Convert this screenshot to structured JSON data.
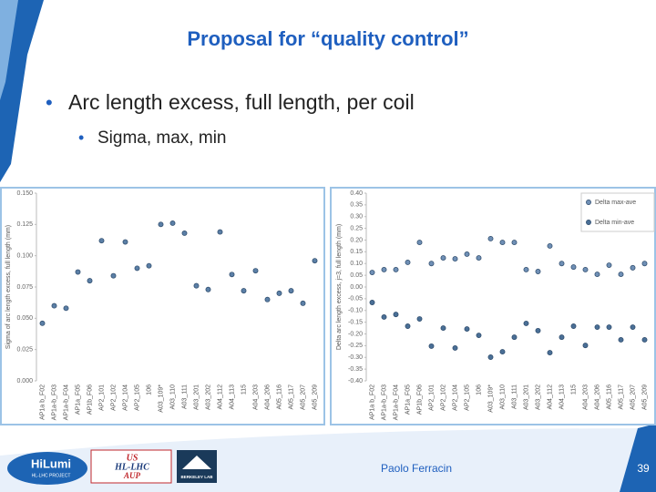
{
  "slide": {
    "title": "Proposal for “quality control”",
    "bullets": [
      "Arc length excess, full length, per coil"
    ],
    "sub_bullets": [
      "Sigma, max, min"
    ],
    "logos": [
      "HiLumi",
      "HL-LHC PROJECT",
      "US",
      "HL-LHC",
      "AUP",
      "BERKELEY LAB"
    ],
    "footer": "Paolo Ferracin",
    "page": "39"
  },
  "chart_data": [
    {
      "type": "scatter",
      "ylabel": "Sigma of arc length excess, full length (mm)",
      "categories": [
        "AP1a b_F02",
        "AP1a-b_F03",
        "AP1a-b_F04",
        "AP1a_F05",
        "AP1b_F06",
        "AP2_101",
        "AP2_102",
        "AP2_104",
        "AP2_105",
        "106",
        "A03_109*",
        "A03_110",
        "A03_111",
        "A03_201",
        "A03_202",
        "A04_112",
        "A04_113",
        "115",
        "A04_203",
        "A04_206",
        "A05_116",
        "A05_117",
        "A05_207",
        "A05_209"
      ],
      "series": [
        {
          "name": "Sigma",
          "color": "#5b7fa6",
          "values": [
            0.046,
            0.06,
            0.058,
            0.087,
            0.08,
            0.112,
            0.084,
            0.111,
            0.09,
            0.092,
            0.125,
            0.126,
            0.118,
            0.076,
            0.073,
            0.119,
            0.085,
            0.072,
            0.088,
            0.065,
            0.07,
            0.072,
            0.062,
            0.096
          ]
        }
      ],
      "ylim": [
        0,
        0.15
      ],
      "yticks": [
        {
          "value": 0,
          "label": "0.000"
        },
        {
          "value": 0.025,
          "label": "0.025"
        },
        {
          "value": 0.05,
          "label": "0.050"
        },
        {
          "value": 0.075,
          "label": "0.075"
        },
        {
          "value": 0.1,
          "label": "0.100"
        },
        {
          "value": 0.125,
          "label": "0.125"
        },
        {
          "value": 0.15,
          "label": "0.150"
        }
      ],
      "legend": false
    },
    {
      "type": "scatter",
      "ylabel": "Delta arc length excess, j=3, full length (mm)",
      "categories": [
        "AP1a b_F02",
        "AP1a-b_F03",
        "AP1a-b_F04",
        "AP1a_F05",
        "AP1b_F06",
        "AP2_101",
        "AP2_102",
        "AP2_104",
        "AP2_105",
        "106",
        "A03_109*",
        "A03_110",
        "A03_111",
        "A03_201",
        "A03_202",
        "A04_112",
        "A04_113",
        "115",
        "A04_203",
        "A04_206",
        "A05_116",
        "A05_117",
        "A05_207",
        "A05_209"
      ],
      "series": [
        {
          "name": "Delta max-ave",
          "color": "#6f8fb5",
          "values": [
            0.062,
            0.074,
            0.074,
            0.105,
            0.19,
            0.1,
            0.124,
            0.12,
            0.14,
            0.124,
            0.206,
            0.19,
            0.19,
            0.074,
            0.066,
            0.175,
            0.1,
            0.085,
            0.074,
            0.054,
            0.093,
            0.054,
            0.082,
            0.1
          ]
        },
        {
          "name": "Delta min-ave",
          "color": "#4a6f96",
          "values": [
            -0.066,
            -0.128,
            -0.117,
            -0.167,
            -0.136,
            -0.252,
            -0.175,
            -0.26,
            -0.179,
            -0.206,
            -0.299,
            -0.276,
            -0.214,
            -0.155,
            -0.186,
            -0.28,
            -0.214,
            -0.167,
            -0.249,
            -0.171,
            -0.171,
            -0.225,
            -0.171,
            -0.225
          ]
        }
      ],
      "ylim": [
        -0.4,
        0.4
      ],
      "yticks": [
        {
          "value": -0.4,
          "label": "-0.40"
        },
        {
          "value": -0.35,
          "label": "-0.35"
        },
        {
          "value": -0.3,
          "label": "-0.30"
        },
        {
          "value": -0.25,
          "label": "-0.25"
        },
        {
          "value": -0.2,
          "label": "-0.20"
        },
        {
          "value": -0.15,
          "label": "-0.15"
        },
        {
          "value": -0.1,
          "label": "-0.10"
        },
        {
          "value": -0.05,
          "label": "-0.05"
        },
        {
          "value": 0,
          "label": "0.00"
        },
        {
          "value": 0.05,
          "label": "0.05"
        },
        {
          "value": 0.1,
          "label": "0.10"
        },
        {
          "value": 0.15,
          "label": "0.15"
        },
        {
          "value": 0.2,
          "label": "0.20"
        },
        {
          "value": 0.25,
          "label": "0.25"
        },
        {
          "value": 0.3,
          "label": "0.30"
        },
        {
          "value": 0.35,
          "label": "0.35"
        },
        {
          "value": 0.4,
          "label": "0.40"
        }
      ],
      "legend": "upper right"
    }
  ]
}
